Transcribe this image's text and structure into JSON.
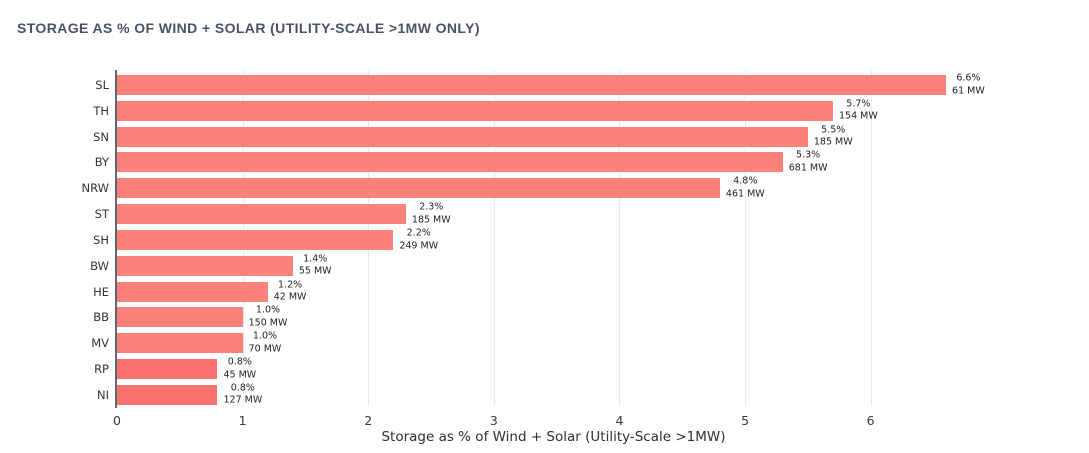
{
  "title": "STORAGE AS % OF WIND + SOLAR (UTILITY-SCALE >1MW ONLY)",
  "colors": {
    "bar_default": "#fa827a",
    "bar_deep": "#f8716e",
    "gridline": "#e9e9f1",
    "axis_line": "#62676f",
    "title_text": "#485368"
  },
  "chart_data": {
    "type": "bar",
    "orientation": "horizontal",
    "title": "STORAGE AS % OF WIND + SOLAR (UTILITY-SCALE >1MW ONLY)",
    "xlabel": "Storage as % of Wind + Solar (Utility-Scale >1MW)",
    "ylabel": "",
    "xlim": [
      0,
      6.95
    ],
    "xticks": [
      "0",
      "1",
      "2",
      "3",
      "4",
      "5",
      "6"
    ],
    "grid": "vertical",
    "legend": "none",
    "categories": [
      "SL",
      "TH",
      "SN",
      "BY",
      "NRW",
      "ST",
      "SH",
      "BW",
      "HE",
      "BB",
      "MV",
      "RP",
      "NI"
    ],
    "series": [
      {
        "name": "Storage as % of Wind + Solar",
        "values": [
          6.6,
          5.7,
          5.5,
          5.3,
          4.8,
          2.3,
          2.2,
          1.4,
          1.2,
          1.0,
          1.0,
          0.8,
          0.8
        ]
      },
      {
        "name": "Storage MW",
        "values": [
          61,
          154,
          185,
          681,
          461,
          185,
          249,
          55,
          42,
          150,
          70,
          45,
          127
        ]
      }
    ],
    "rows": [
      {
        "category": "SL",
        "pct": 6.6,
        "pct_label": "6.6%",
        "mw_label": "61 MW",
        "color": "#fa827a"
      },
      {
        "category": "TH",
        "pct": 5.7,
        "pct_label": "5.7%",
        "mw_label": "154 MW",
        "color": "#fa827a"
      },
      {
        "category": "SN",
        "pct": 5.5,
        "pct_label": "5.5%",
        "mw_label": "185 MW",
        "color": "#fa827a"
      },
      {
        "category": "BY",
        "pct": 5.3,
        "pct_label": "5.3%",
        "mw_label": "681 MW",
        "color": "#fa827a"
      },
      {
        "category": "NRW",
        "pct": 4.8,
        "pct_label": "4.8%",
        "mw_label": "461 MW",
        "color": "#fa827a"
      },
      {
        "category": "ST",
        "pct": 2.3,
        "pct_label": "2.3%",
        "mw_label": "185 MW",
        "color": "#fa827a"
      },
      {
        "category": "SH",
        "pct": 2.2,
        "pct_label": "2.2%",
        "mw_label": "249 MW",
        "color": "#fa827a"
      },
      {
        "category": "BW",
        "pct": 1.4,
        "pct_label": "1.4%",
        "mw_label": "55 MW",
        "color": "#fa827a"
      },
      {
        "category": "HE",
        "pct": 1.2,
        "pct_label": "1.2%",
        "mw_label": "42 MW",
        "color": "#fa827a"
      },
      {
        "category": "BB",
        "pct": 1.0,
        "pct_label": "1.0%",
        "mw_label": "150 MW",
        "color": "#fa827a"
      },
      {
        "category": "MV",
        "pct": 1.0,
        "pct_label": "1.0%",
        "mw_label": "70 MW",
        "color": "#fa827a"
      },
      {
        "category": "RP",
        "pct": 0.8,
        "pct_label": "0.8%",
        "mw_label": "45 MW",
        "color": "#f8716e"
      },
      {
        "category": "NI",
        "pct": 0.8,
        "pct_label": "0.8%",
        "mw_label": "127 MW",
        "color": "#f8716e"
      }
    ]
  }
}
